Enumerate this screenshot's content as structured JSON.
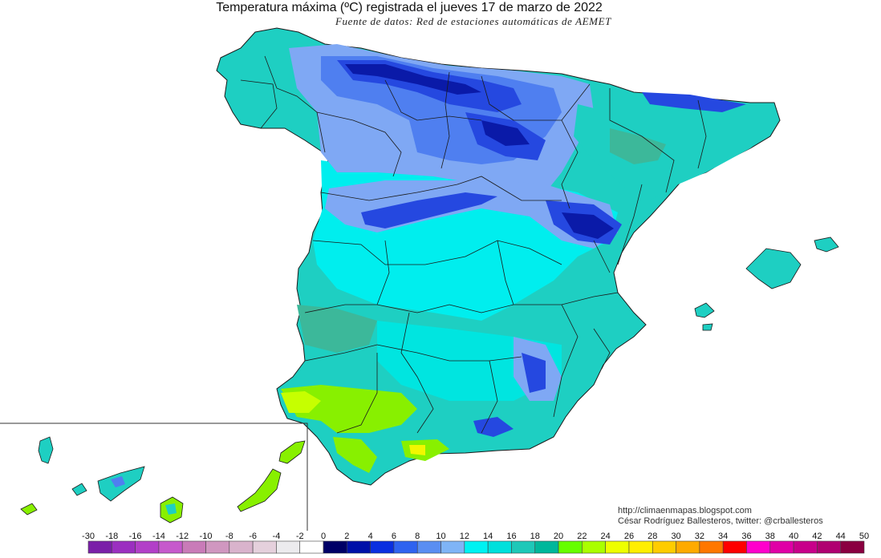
{
  "header": {
    "title": "Temperatura máxima (ºC) registrada el jueves 17 de marzo de 2022",
    "subtitle": "Fuente de datos: Red de estaciones automáticas de AEMET"
  },
  "credits": {
    "blog": "http://climaenmapas.blogspot.com",
    "author": "César Rodríguez Ballesteros, twitter: @crballesteros"
  },
  "legend": {
    "unit": "ºC",
    "ticks": [
      "-30",
      "-18",
      "-16",
      "-14",
      "-12",
      "-10",
      "-8",
      "-6",
      "-4",
      "-2",
      "0",
      "2",
      "4",
      "6",
      "8",
      "10",
      "12",
      "14",
      "16",
      "18",
      "20",
      "22",
      "24",
      "26",
      "28",
      "30",
      "32",
      "34",
      "36",
      "38",
      "40",
      "42",
      "44",
      "50"
    ],
    "colors": [
      "#7a1fa8",
      "#9b2fc0",
      "#b23fc8",
      "#c659cc",
      "#c97bb8",
      "#d097c0",
      "#d9b3cc",
      "#e5d0dc",
      "#ecebee",
      "#ffffff",
      "#000066",
      "#0010a8",
      "#0a2fe0",
      "#2f63f0",
      "#5a8ef2",
      "#7fb4f6",
      "#00f2f2",
      "#00e0dc",
      "#1ec8b8",
      "#00b79b",
      "#66ff00",
      "#aaff00",
      "#eeff00",
      "#ffee00",
      "#ffcc00",
      "#ffaa00",
      "#ff7700",
      "#ff0000",
      "#ff00cc",
      "#e000a6",
      "#c8008a",
      "#b00070",
      "#8a0040"
    ]
  },
  "map": {
    "regions": [
      "Península Ibérica",
      "Islas Baleares",
      "Islas Canarias"
    ],
    "palette": {
      "sea": "#ffffff",
      "t16": "#1ecfc2",
      "t14": "#00e5e0",
      "t12": "#00f2f2",
      "t10": "#7fa8f4",
      "t8": "#4f7ff0",
      "t6": "#2548e0",
      "t4": "#0a1aa8",
      "t18": "#3cb89a",
      "t20": "#88f000",
      "t22": "#c6ff00",
      "t24": "#f2f700",
      "borders": "#1a1a1a"
    }
  }
}
